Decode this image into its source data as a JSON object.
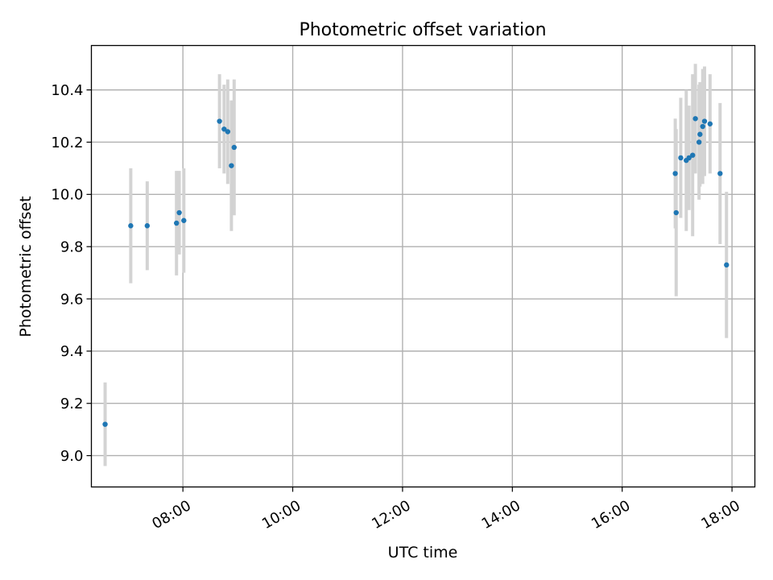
{
  "chart_data": {
    "type": "scatter",
    "title": "Photometric offset variation",
    "xlabel": "UTC time",
    "ylabel": "Photometric offset",
    "x_unit": "hours UTC",
    "xlim": [
      "06:20",
      "18:25"
    ],
    "ylim": [
      8.88,
      10.57
    ],
    "x_ticks": [
      "08:00",
      "10:00",
      "12:00",
      "14:00",
      "16:00",
      "18:00"
    ],
    "y_ticks": [
      "9.0",
      "9.2",
      "9.4",
      "9.6",
      "9.8",
      "10.0",
      "10.2",
      "10.4"
    ],
    "grid": true,
    "colors": {
      "point": "#1f77b4",
      "errorbar": "#d3d3d3",
      "grid": "#b0b0b0",
      "axis": "#000000"
    },
    "series": [
      {
        "points": [
          {
            "x": "06:35",
            "y": 9.12,
            "err": 0.16
          },
          {
            "x": "07:03",
            "y": 9.88,
            "err": 0.22
          },
          {
            "x": "07:21",
            "y": 9.88,
            "err": 0.17
          },
          {
            "x": "07:53",
            "y": 9.89,
            "err": 0.2
          },
          {
            "x": "07:56",
            "y": 9.93,
            "err": 0.16
          },
          {
            "x": "08:01",
            "y": 9.9,
            "err": 0.2
          },
          {
            "x": "08:40",
            "y": 10.28,
            "err": 0.18
          },
          {
            "x": "08:45",
            "y": 10.25,
            "err": 0.17
          },
          {
            "x": "08:49",
            "y": 10.24,
            "err": 0.2
          },
          {
            "x": "08:53",
            "y": 10.11,
            "err": 0.25
          },
          {
            "x": "08:56",
            "y": 10.18,
            "err": 0.26
          },
          {
            "x": "16:58",
            "y": 10.08,
            "err": 0.21
          },
          {
            "x": "16:59",
            "y": 9.93,
            "err": 0.32
          },
          {
            "x": "17:04",
            "y": 10.14,
            "err": 0.23
          },
          {
            "x": "17:10",
            "y": 10.13,
            "err": 0.27
          },
          {
            "x": "17:13",
            "y": 10.14,
            "err": 0.2
          },
          {
            "x": "17:17",
            "y": 10.15,
            "err": 0.31
          },
          {
            "x": "17:20",
            "y": 10.29,
            "err": 0.21
          },
          {
            "x": "17:24",
            "y": 10.2,
            "err": 0.22
          },
          {
            "x": "17:25",
            "y": 10.23,
            "err": 0.2
          },
          {
            "x": "17:28",
            "y": 10.26,
            "err": 0.22
          },
          {
            "x": "17:30",
            "y": 10.28,
            "err": 0.21
          },
          {
            "x": "17:36",
            "y": 10.27,
            "err": 0.19
          },
          {
            "x": "17:47",
            "y": 10.08,
            "err": 0.27
          },
          {
            "x": "17:54",
            "y": 9.73,
            "err": 0.28
          }
        ]
      }
    ]
  }
}
